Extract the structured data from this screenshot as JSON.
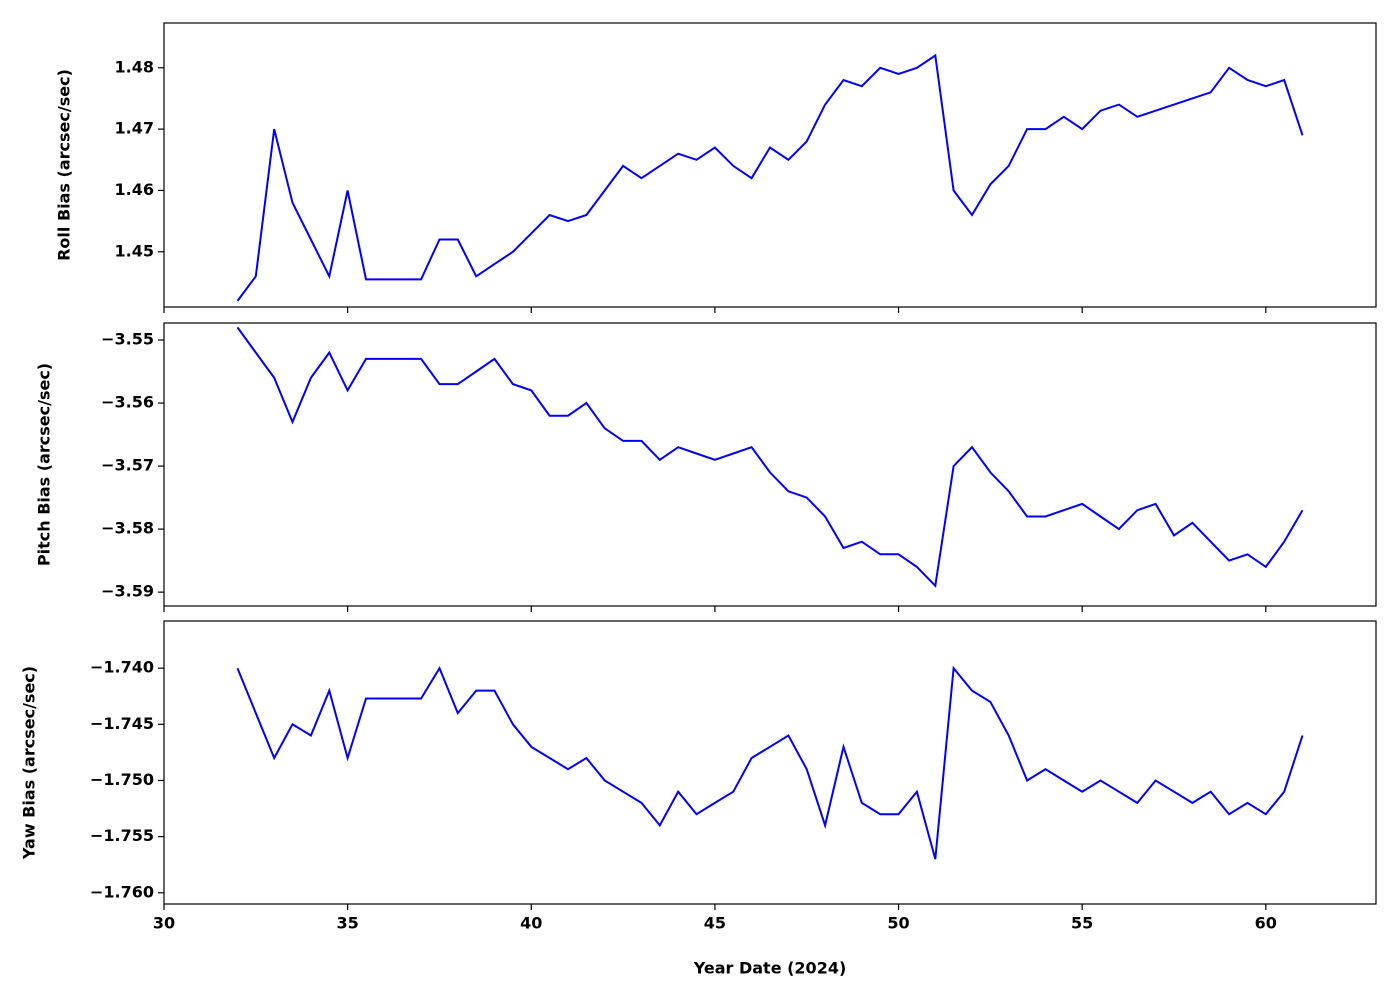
{
  "chart_data": [
    {
      "type": "line",
      "ylabel": "Roll Bias (arcsec/sec)",
      "color": "#0000ff",
      "xlim": [
        30,
        63
      ],
      "xticks": [
        30,
        35,
        40,
        45,
        50,
        55,
        60
      ],
      "ylim": [
        1.441,
        1.4873
      ],
      "yticks": [
        1.45,
        1.46,
        1.47,
        1.48
      ],
      "x": [
        32,
        32.5,
        33,
        33.5,
        34,
        34.5,
        35,
        35.5,
        36,
        36.5,
        37,
        37.5,
        38,
        38.5,
        39,
        39.5,
        40,
        40.5,
        41,
        41.5,
        42,
        42.5,
        43,
        43.5,
        44,
        44.5,
        45,
        45.5,
        46,
        46.5,
        47,
        47.5,
        48,
        48.5,
        49,
        49.5,
        50,
        50.5,
        51,
        51.5,
        52,
        52.5,
        53,
        53.5,
        54,
        54.5,
        55,
        55.5,
        56,
        56.5,
        57,
        57.5,
        58,
        58.5,
        59,
        59.5,
        60,
        60.5,
        61
      ],
      "values": [
        1.442,
        1.446,
        1.47,
        1.458,
        1.452,
        1.446,
        1.46,
        1.4455,
        1.4455,
        1.4455,
        1.4455,
        1.452,
        1.452,
        1.446,
        1.448,
        1.45,
        1.453,
        1.456,
        1.455,
        1.456,
        1.46,
        1.464,
        1.462,
        1.464,
        1.466,
        1.465,
        1.467,
        1.464,
        1.462,
        1.467,
        1.465,
        1.468,
        1.474,
        1.478,
        1.477,
        1.48,
        1.479,
        1.48,
        1.482,
        1.46,
        1.456,
        1.461,
        1.464,
        1.47,
        1.47,
        1.472,
        1.47,
        1.473,
        1.474,
        1.472,
        1.473,
        1.474,
        1.475,
        1.476,
        1.48,
        1.478,
        1.477,
        1.478,
        1.469
      ]
    },
    {
      "type": "line",
      "ylabel": "Pitch Bias (arcsec/sec)",
      "color": "#0000ff",
      "xlim": [
        30,
        63
      ],
      "xticks": [
        30,
        35,
        40,
        45,
        50,
        55,
        60
      ],
      "ylim": [
        -3.5922,
        -3.5473
      ],
      "yticks": [
        {
          "value": -3.55,
          "label": "−3.55"
        },
        {
          "value": -3.56,
          "label": "−3.56"
        },
        {
          "value": -3.57,
          "label": "−3.57"
        },
        {
          "value": -3.58,
          "label": "−3.58"
        },
        {
          "value": -3.59,
          "label": "−3.59"
        }
      ],
      "x": [
        32,
        32.5,
        33,
        33.5,
        34,
        34.5,
        35,
        35.5,
        36,
        36.5,
        37,
        37.5,
        38,
        38.5,
        39,
        39.5,
        40,
        40.5,
        41,
        41.5,
        42,
        42.5,
        43,
        43.5,
        44,
        44.5,
        45,
        45.5,
        46,
        46.5,
        47,
        47.5,
        48,
        48.5,
        49,
        49.5,
        50,
        50.5,
        51,
        51.5,
        52,
        52.5,
        53,
        53.5,
        54,
        54.5,
        55,
        55.5,
        56,
        56.5,
        57,
        57.5,
        58,
        58.5,
        59,
        59.5,
        60,
        60.5,
        61
      ],
      "values": [
        -3.548,
        -3.552,
        -3.556,
        -3.563,
        -3.556,
        -3.552,
        -3.558,
        -3.553,
        -3.553,
        -3.553,
        -3.553,
        -3.557,
        -3.557,
        -3.555,
        -3.553,
        -3.557,
        -3.558,
        -3.562,
        -3.562,
        -3.56,
        -3.564,
        -3.566,
        -3.566,
        -3.569,
        -3.567,
        -3.568,
        -3.569,
        -3.568,
        -3.567,
        -3.571,
        -3.574,
        -3.575,
        -3.578,
        -3.583,
        -3.582,
        -3.584,
        -3.584,
        -3.586,
        -3.589,
        -3.57,
        -3.567,
        -3.571,
        -3.574,
        -3.578,
        -3.578,
        -3.577,
        -3.576,
        -3.578,
        -3.58,
        -3.577,
        -3.576,
        -3.581,
        -3.579,
        -3.582,
        -3.585,
        -3.584,
        -3.586,
        -3.582,
        -3.577
      ]
    },
    {
      "type": "line",
      "ylabel": "Yaw Bias (arcsec/sec)",
      "xlabel": "Year Date (2024)",
      "color": "#0000ff",
      "xlim": [
        30,
        63
      ],
      "xticks": [
        30,
        35,
        40,
        45,
        50,
        55,
        60
      ],
      "ylim": [
        -1.761,
        -1.7358
      ],
      "yticks": [
        {
          "value": -1.74,
          "label": "−1.740"
        },
        {
          "value": -1.745,
          "label": "−1.745"
        },
        {
          "value": -1.75,
          "label": "−1.750"
        },
        {
          "value": -1.755,
          "label": "−1.755"
        },
        {
          "value": -1.76,
          "label": "−1.760"
        }
      ],
      "x": [
        32,
        32.5,
        33,
        33.5,
        34,
        34.5,
        35,
        35.5,
        36,
        36.5,
        37,
        37.5,
        38,
        38.5,
        39,
        39.5,
        40,
        40.5,
        41,
        41.5,
        42,
        42.5,
        43,
        43.5,
        44,
        44.5,
        45,
        45.5,
        46,
        46.5,
        47,
        47.5,
        48,
        48.5,
        49,
        49.5,
        50,
        50.5,
        51,
        51.5,
        52,
        52.5,
        53,
        53.5,
        54,
        54.5,
        55,
        55.5,
        56,
        56.5,
        57,
        57.5,
        58,
        58.5,
        59,
        59.5,
        60,
        60.5,
        61
      ],
      "values": [
        -1.74,
        -1.744,
        -1.748,
        -1.745,
        -1.746,
        -1.742,
        -1.748,
        -1.7427,
        -1.7427,
        -1.7427,
        -1.7427,
        -1.74,
        -1.744,
        -1.742,
        -1.742,
        -1.745,
        -1.747,
        -1.748,
        -1.749,
        -1.748,
        -1.75,
        -1.751,
        -1.752,
        -1.754,
        -1.751,
        -1.753,
        -1.752,
        -1.751,
        -1.748,
        -1.747,
        -1.746,
        -1.749,
        -1.754,
        -1.747,
        -1.752,
        -1.753,
        -1.753,
        -1.751,
        -1.757,
        -1.74,
        -1.742,
        -1.743,
        -1.746,
        -1.75,
        -1.749,
        -1.75,
        -1.751,
        -1.75,
        -1.751,
        -1.752,
        -1.75,
        -1.751,
        -1.752,
        -1.751,
        -1.753,
        -1.752,
        -1.753,
        -1.751,
        -1.746
      ]
    }
  ]
}
